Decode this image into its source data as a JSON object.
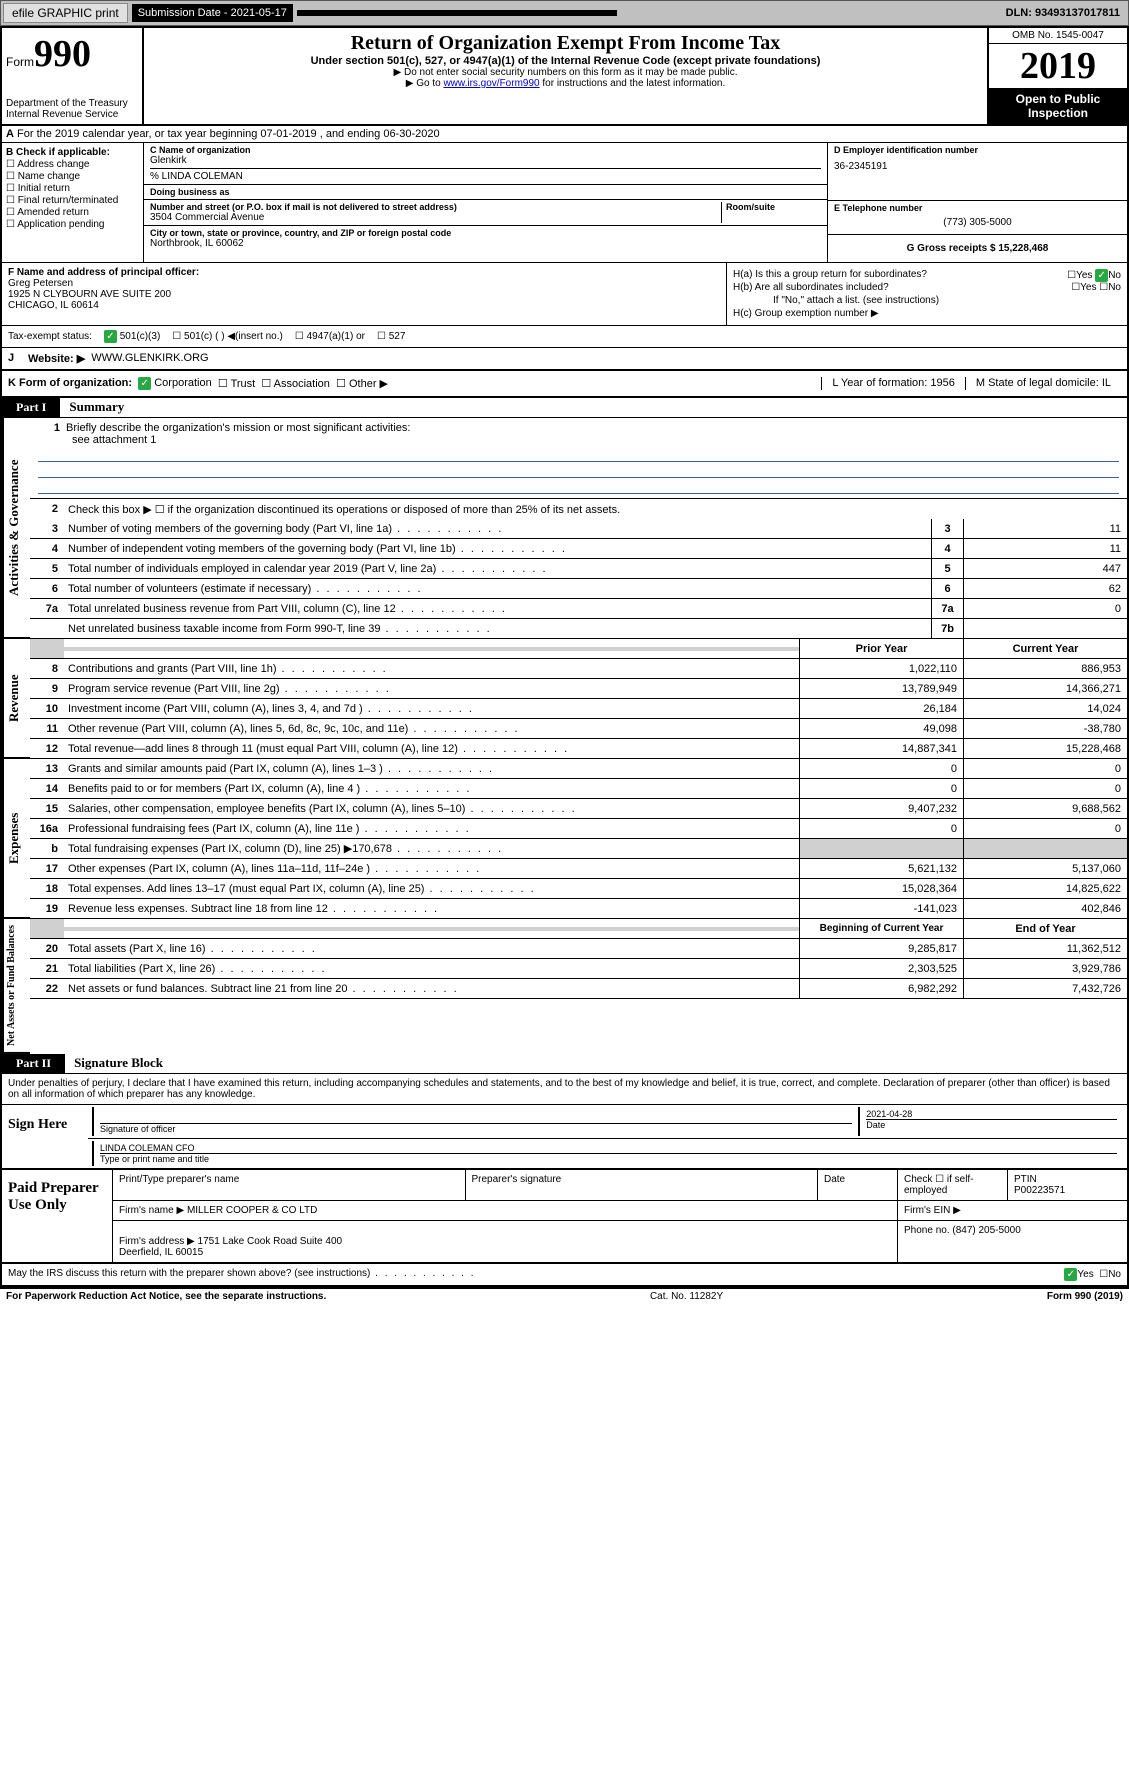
{
  "toolbar": {
    "efile": "efile GRAPHIC print",
    "submission_label": "Submission Date - 2021-05-17",
    "dln": "DLN: 93493137017811"
  },
  "header": {
    "form_word": "Form",
    "form_num": "990",
    "dept": "Department of the Treasury\nInternal Revenue Service",
    "title": "Return of Organization Exempt From Income Tax",
    "subtitle": "Under section 501(c), 527, or 4947(a)(1) of the Internal Revenue Code (except private foundations)",
    "instr1": "Do not enter social security numbers on this form as it may be made public.",
    "instr2_pre": "Go to ",
    "instr2_link": "www.irs.gov/Form990",
    "instr2_post": " for instructions and the latest information.",
    "omb": "OMB No. 1545-0047",
    "year": "2019",
    "open": "Open to Public Inspection"
  },
  "row_a": "For the 2019 calendar year, or tax year beginning 07-01-2019    , and ending 06-30-2020",
  "box_b": {
    "label": "B Check if applicable:",
    "opts": [
      "Address change",
      "Name change",
      "Initial return",
      "Final return/terminated",
      "Amended return",
      "Application pending"
    ]
  },
  "box_c": {
    "name_lbl": "C Name of organization",
    "name": "Glenkirk",
    "care_of": "% LINDA COLEMAN",
    "dba_lbl": "Doing business as",
    "addr_lbl": "Number and street (or P.O. box if mail is not delivered to street address)",
    "room_lbl": "Room/suite",
    "addr": "3504 Commercial Avenue",
    "city_lbl": "City or town, state or province, country, and ZIP or foreign postal code",
    "city": "Northbrook, IL  60062"
  },
  "box_d": {
    "lbl": "D Employer identification number",
    "val": "36-2345191"
  },
  "box_e": {
    "lbl": "E Telephone number",
    "val": "(773) 305-5000"
  },
  "box_g": {
    "lbl": "G Gross receipts $ 15,228,468"
  },
  "box_f": {
    "lbl": "F  Name and address of principal officer:",
    "name": "Greg Petersen",
    "addr": "1925 N CLYBOURN AVE SUITE 200\nCHICAGO, IL  60614"
  },
  "box_h": {
    "a": "H(a)  Is this a group return for subordinates?",
    "b": "H(b)  Are all subordinates included?",
    "b_note": "If \"No,\" attach a list. (see instructions)",
    "c": "H(c)  Group exemption number ▶"
  },
  "tax_status": {
    "lbl": "Tax-exempt status:",
    "o1": "501(c)(3)",
    "o2": "501(c) (   ) ◀(insert no.)",
    "o3": "4947(a)(1) or",
    "o4": "527"
  },
  "row_j": {
    "lbl": "J",
    "website_lbl": "Website: ▶",
    "website": "WWW.GLENKIRK.ORG"
  },
  "row_k": {
    "lbl": "K Form of organization:",
    "opts": [
      "Corporation",
      "Trust",
      "Association",
      "Other ▶"
    ],
    "l": "L Year of formation: 1956",
    "m": "M State of legal domicile: IL"
  },
  "part1": {
    "label": "Part I",
    "title": "Summary"
  },
  "side_labels": [
    "Activities & Governance",
    "Revenue",
    "Expenses",
    "Net Assets or Fund Balances"
  ],
  "mission": {
    "num": "1",
    "text": "Briefly describe the organization's mission or most significant activities:",
    "val": "see attachment 1"
  },
  "line2": "Check this box ▶ ☐  if the organization discontinued its operations or disposed of more than 25% of its net assets.",
  "gov_lines": [
    {
      "n": "3",
      "d": "Number of voting members of the governing body (Part VI, line 1a)",
      "b": "3",
      "v": "11"
    },
    {
      "n": "4",
      "d": "Number of independent voting members of the governing body (Part VI, line 1b)",
      "b": "4",
      "v": "11"
    },
    {
      "n": "5",
      "d": "Total number of individuals employed in calendar year 2019 (Part V, line 2a)",
      "b": "5",
      "v": "447"
    },
    {
      "n": "6",
      "d": "Total number of volunteers (estimate if necessary)",
      "b": "6",
      "v": "62"
    },
    {
      "n": "7a",
      "d": "Total unrelated business revenue from Part VIII, column (C), line 12",
      "b": "7a",
      "v": "0"
    },
    {
      "n": "",
      "d": "Net unrelated business taxable income from Form 990-T, line 39",
      "b": "7b",
      "v": ""
    }
  ],
  "rev_head": {
    "py": "Prior Year",
    "cy": "Current Year"
  },
  "rev_lines": [
    {
      "n": "8",
      "d": "Contributions and grants (Part VIII, line 1h)",
      "py": "1,022,110",
      "cy": "886,953"
    },
    {
      "n": "9",
      "d": "Program service revenue (Part VIII, line 2g)",
      "py": "13,789,949",
      "cy": "14,366,271"
    },
    {
      "n": "10",
      "d": "Investment income (Part VIII, column (A), lines 3, 4, and 7d )",
      "py": "26,184",
      "cy": "14,024"
    },
    {
      "n": "11",
      "d": "Other revenue (Part VIII, column (A), lines 5, 6d, 8c, 9c, 10c, and 11e)",
      "py": "49,098",
      "cy": "-38,780"
    },
    {
      "n": "12",
      "d": "Total revenue—add lines 8 through 11 (must equal Part VIII, column (A), line 12)",
      "py": "14,887,341",
      "cy": "15,228,468"
    }
  ],
  "exp_lines": [
    {
      "n": "13",
      "d": "Grants and similar amounts paid (Part IX, column (A), lines 1–3 )",
      "py": "0",
      "cy": "0"
    },
    {
      "n": "14",
      "d": "Benefits paid to or for members (Part IX, column (A), line 4 )",
      "py": "0",
      "cy": "0"
    },
    {
      "n": "15",
      "d": "Salaries, other compensation, employee benefits (Part IX, column (A), lines 5–10)",
      "py": "9,407,232",
      "cy": "9,688,562"
    },
    {
      "n": "16a",
      "d": "Professional fundraising fees (Part IX, column (A), line 11e )",
      "py": "0",
      "cy": "0"
    },
    {
      "n": "b",
      "d": "Total fundraising expenses (Part IX, column (D), line 25) ▶170,678",
      "py": "grey",
      "cy": "grey"
    },
    {
      "n": "17",
      "d": "Other expenses (Part IX, column (A), lines 11a–11d, 11f–24e )",
      "py": "5,621,132",
      "cy": "5,137,060"
    },
    {
      "n": "18",
      "d": "Total expenses. Add lines 13–17 (must equal Part IX, column (A), line 25)",
      "py": "15,028,364",
      "cy": "14,825,622"
    },
    {
      "n": "19",
      "d": "Revenue less expenses. Subtract line 18 from line 12",
      "py": "-141,023",
      "cy": "402,846"
    }
  ],
  "na_head": {
    "py": "Beginning of Current Year",
    "cy": "End of Year"
  },
  "na_lines": [
    {
      "n": "20",
      "d": "Total assets (Part X, line 16)",
      "py": "9,285,817",
      "cy": "11,362,512"
    },
    {
      "n": "21",
      "d": "Total liabilities (Part X, line 26)",
      "py": "2,303,525",
      "cy": "3,929,786"
    },
    {
      "n": "22",
      "d": "Net assets or fund balances. Subtract line 21 from line 20",
      "py": "6,982,292",
      "cy": "7,432,726"
    }
  ],
  "part2": {
    "label": "Part II",
    "title": "Signature Block"
  },
  "penalty": "Under penalties of perjury, I declare that I have examined this return, including accompanying schedules and statements, and to the best of my knowledge and belief, it is true, correct, and complete. Declaration of preparer (other than officer) is based on all information of which preparer has any knowledge.",
  "sign": {
    "here": "Sign Here",
    "date": "2021-04-28",
    "sig_lbl": "Signature of officer",
    "date_lbl": "Date",
    "name": "LINDA COLEMAN  CFO",
    "name_lbl": "Type or print name and title"
  },
  "prep": {
    "label": "Paid Preparer Use Only",
    "h1": "Print/Type preparer's name",
    "h2": "Preparer's signature",
    "h3": "Date",
    "h4": "Check ☐ if self-employed",
    "h5_lbl": "PTIN",
    "h5": "P00223571",
    "firm_lbl": "Firm's name      ▶",
    "firm": "MILLER COOPER & CO LTD",
    "ein_lbl": "Firm's EIN ▶",
    "addr_lbl": "Firm's address ▶",
    "addr": "1751 Lake Cook Road Suite 400\nDeerfield, IL  60015",
    "phone_lbl": "Phone no. (847) 205-5000"
  },
  "discuss": "May the IRS discuss this return with the preparer shown above? (see instructions)",
  "footer": {
    "pra": "For Paperwork Reduction Act Notice, see the separate instructions.",
    "cat": "Cat. No. 11282Y",
    "form": "Form 990 (2019)"
  }
}
